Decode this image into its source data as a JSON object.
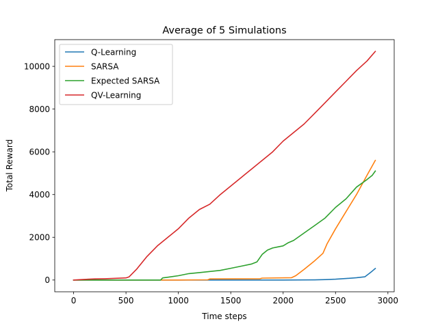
{
  "chart_data": {
    "type": "line",
    "title": "Average of 5 Simulations",
    "xlabel": "Time steps",
    "ylabel": "Total Reward",
    "xlim": [
      -180,
      3060
    ],
    "ylim": [
      -550,
      11250
    ],
    "xticks": [
      0,
      500,
      1000,
      1500,
      2000,
      2500,
      3000
    ],
    "yticks": [
      0,
      2000,
      4000,
      6000,
      8000,
      10000
    ],
    "legend_position": "top-left",
    "grid": false,
    "series": [
      {
        "name": "Q-Learning",
        "color": "#1f77b4",
        "x": [
          0,
          500,
          1000,
          1500,
          2000,
          2300,
          2400,
          2500,
          2600,
          2700,
          2780,
          2820,
          2850,
          2880
        ],
        "y": [
          0,
          0,
          0,
          0,
          0,
          5,
          20,
          40,
          70,
          110,
          150,
          300,
          420,
          540
        ]
      },
      {
        "name": "SARSA",
        "color": "#ff7f0e",
        "x": [
          0,
          500,
          1000,
          1280,
          1300,
          1780,
          1800,
          2080,
          2120,
          2200,
          2300,
          2380,
          2420,
          2500,
          2600,
          2700,
          2800,
          2880
        ],
        "y": [
          0,
          0,
          0,
          10,
          50,
          60,
          90,
          110,
          200,
          500,
          900,
          1250,
          1700,
          2400,
          3200,
          4000,
          4900,
          5600
        ]
      },
      {
        "name": "Expected SARSA",
        "color": "#2ca02c",
        "x": [
          0,
          500,
          830,
          850,
          900,
          1000,
          1100,
          1200,
          1300,
          1400,
          1500,
          1600,
          1700,
          1750,
          1800,
          1850,
          1900,
          1950,
          2000,
          2050,
          2100,
          2200,
          2300,
          2400,
          2500,
          2600,
          2700,
          2800,
          2850,
          2880
        ],
        "y": [
          0,
          0,
          0,
          100,
          130,
          200,
          300,
          350,
          400,
          450,
          550,
          650,
          750,
          850,
          1200,
          1400,
          1500,
          1550,
          1600,
          1750,
          1850,
          2200,
          2550,
          2900,
          3400,
          3800,
          4350,
          4700,
          4900,
          5100
        ]
      },
      {
        "name": "QV-Learning",
        "color": "#d62728",
        "x": [
          0,
          100,
          200,
          300,
          400,
          500,
          530,
          600,
          700,
          800,
          900,
          1000,
          1100,
          1200,
          1300,
          1400,
          1500,
          1600,
          1700,
          1800,
          1900,
          2000,
          2100,
          2200,
          2300,
          2400,
          2500,
          2600,
          2700,
          2800,
          2880
        ],
        "y": [
          0,
          30,
          50,
          60,
          80,
          100,
          150,
          500,
          1100,
          1600,
          2000,
          2400,
          2900,
          3300,
          3550,
          4000,
          4400,
          4800,
          5200,
          5600,
          6000,
          6500,
          6900,
          7300,
          7800,
          8300,
          8800,
          9300,
          9800,
          10250,
          10700
        ]
      }
    ]
  }
}
